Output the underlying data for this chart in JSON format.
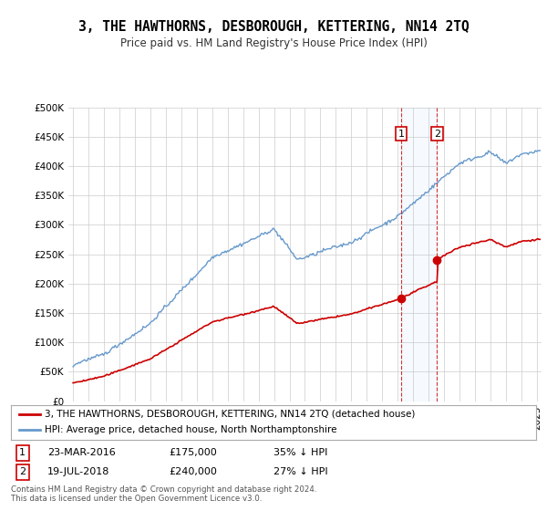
{
  "title": "3, THE HAWTHORNS, DESBOROUGH, KETTERING, NN14 2TQ",
  "subtitle": "Price paid vs. HM Land Registry's House Price Index (HPI)",
  "legend_line1": "3, THE HAWTHORNS, DESBOROUGH, KETTERING, NN14 2TQ (detached house)",
  "legend_line2": "HPI: Average price, detached house, North Northamptonshire",
  "sale1_date": "23-MAR-2016",
  "sale1_price": "£175,000",
  "sale1_hpi": "35% ↓ HPI",
  "sale1_year": 2016.22,
  "sale1_value": 175000,
  "sale2_date": "19-JUL-2018",
  "sale2_price": "£240,000",
  "sale2_hpi": "27% ↓ HPI",
  "sale2_year": 2018.54,
  "sale2_value": 240000,
  "footer": "Contains HM Land Registry data © Crown copyright and database right 2024.\nThis data is licensed under the Open Government Licence v3.0.",
  "ylim": [
    0,
    500000
  ],
  "xlim": [
    1994.7,
    2025.3
  ],
  "property_color": "#cc0000",
  "hpi_color": "#6699cc",
  "background_color": "#ffffff",
  "grid_color": "#cccccc"
}
